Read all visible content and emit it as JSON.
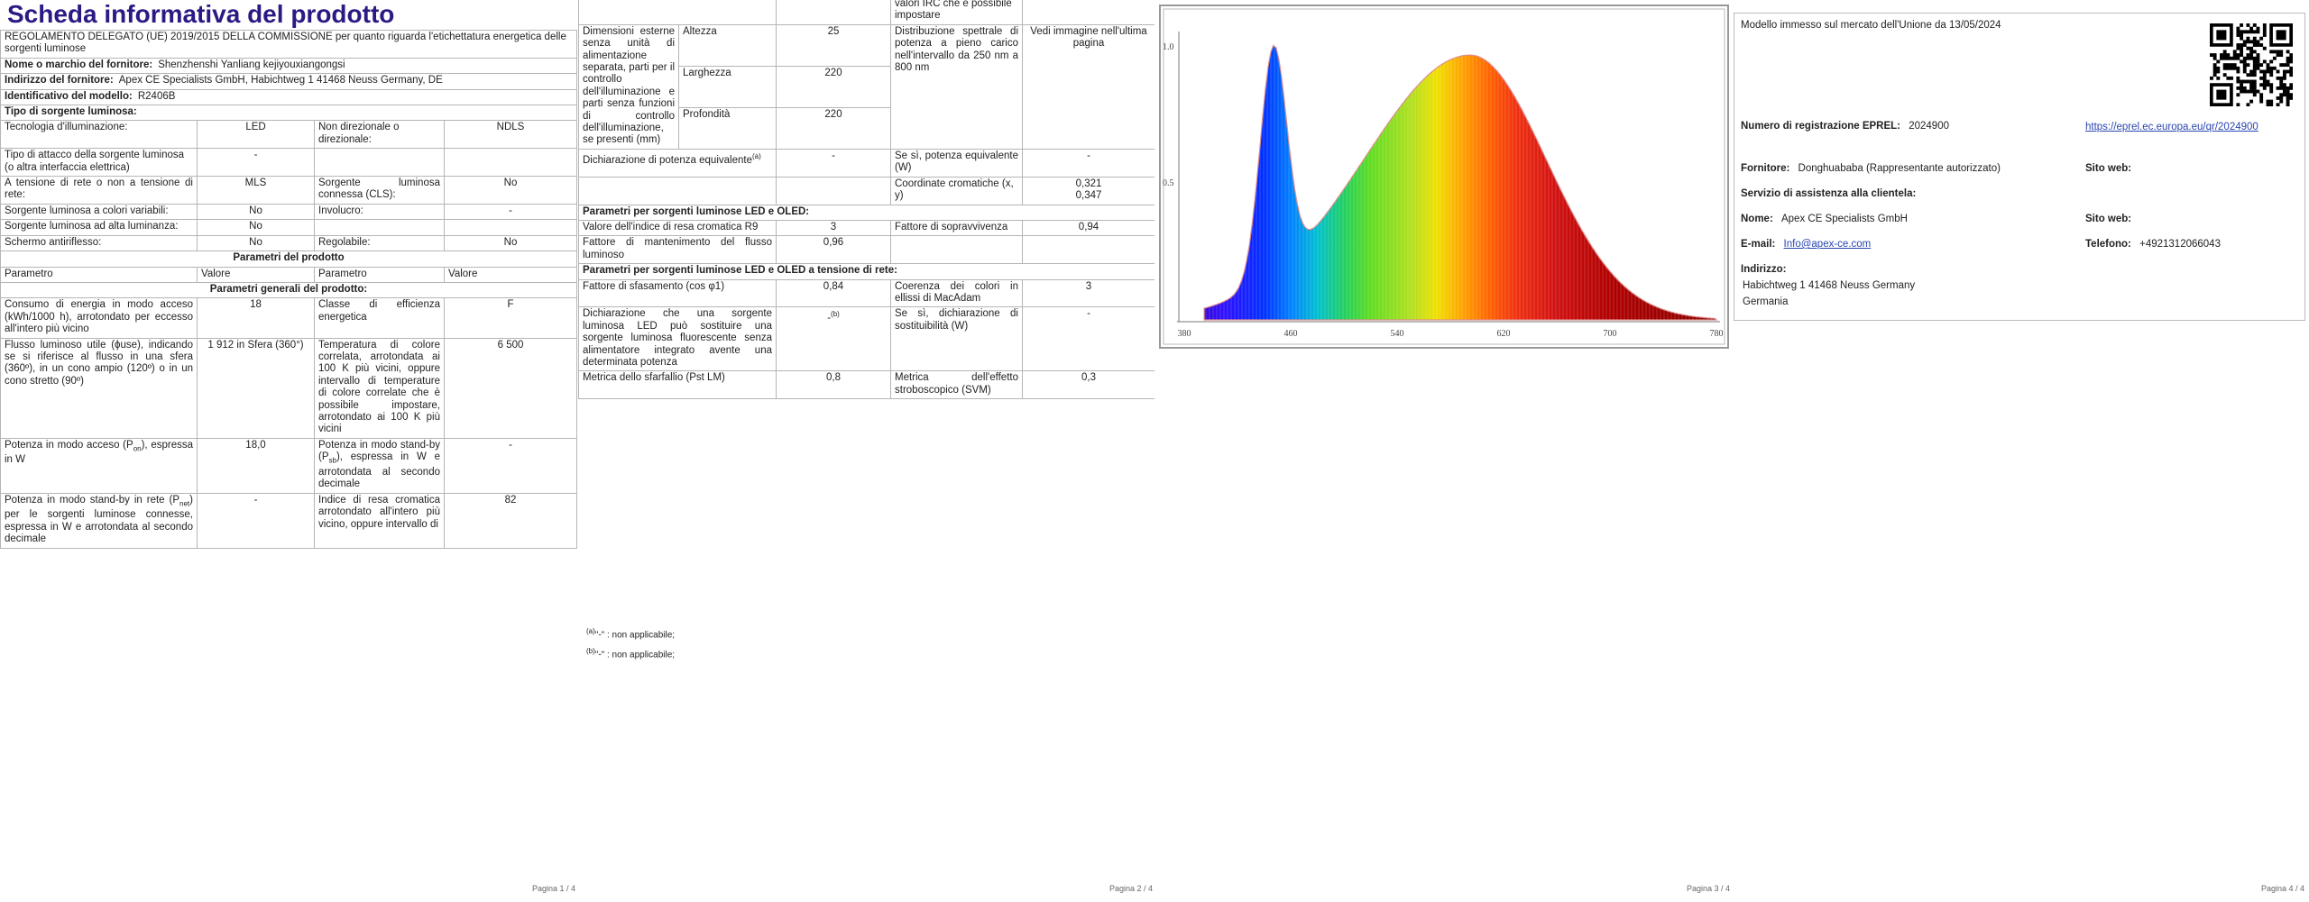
{
  "page1": {
    "title": "Scheda informativa del prodotto",
    "rows": [
      [
        "REGOLAMENTO DELEGATO (UE) 2019/2015 DELLA COMMISSIONE per quanto riguarda l'etichettatura energetica delle sorgenti luminose"
      ],
      [
        [
          "Nome o marchio del fornitore:",
          "Shenzhenshi Yanliang kejiyouxiangongsi"
        ]
      ],
      [
        [
          "Indirizzo del fornitore:",
          "Apex CE Specialists GmbH, Habichtweg 1 41468 Neuss Germany, DE"
        ]
      ],
      [
        [
          "Identificativo del modello:",
          "R2406B"
        ]
      ],
      [
        "Tipo di sorgente luminosa:"
      ],
      [
        "Tecnologia d'illuminazione:",
        "LED",
        "Non direzionale o direzionale:",
        "NDLS"
      ],
      [
        [
          "Tipo di attacco della sorgente luminosa",
          "(o altra interfaccia elettrica)"
        ],
        "-"
      ],
      [
        "A tensione di rete o non a tensione di rete:",
        "MLS",
        "Sorgente luminosa connessa (CLS):",
        "No"
      ],
      [
        "Sorgente luminosa a colori variabili:",
        "No",
        "Involucro:",
        "-"
      ],
      [
        "Sorgente luminosa ad alta luminanza:",
        "No"
      ],
      [
        "Schermo antiriflesso:",
        "No",
        "Regolabile:",
        "No"
      ],
      [
        "Parametri del prodotto"
      ],
      [
        "Parametro",
        "Valore",
        "Parametro",
        "Valore"
      ],
      [
        "Parametri generali del prodotto:"
      ],
      [
        "Consumo di energia in modo acceso (kWh/1000 h), arrotondato per eccesso all'intero più vicino",
        "18",
        "Classe di efficienza energetica",
        "F"
      ],
      [
        "Flusso luminoso utile (ϕuse), indicando se si riferisce al flusso in una sfera (360º), in un cono ampio (120º) o in un cono stretto (90º)",
        "1 912 in Sfera (360°)",
        "Temperatura di colore correlata, arrotondata ai 100 K più vicini, oppure intervallo di temperature di colore correlate che è possibile impostare, arrotondato ai 100 K più vicini",
        "6 500"
      ],
      [
        [
          "Potenza in modo acceso (P",
          "on",
          "), espressa in W"
        ],
        "18,0",
        [
          "Potenza in modo stand-by (P",
          "sb",
          "), espressa in W e arrotondata al secondo decimale"
        ],
        "-"
      ],
      [
        [
          "Potenza in modo stand-by in rete (P",
          "net",
          ") per le sorgenti luminose connesse, espressa in W e arrotondata al secondo decimale"
        ],
        "-",
        "Indice di resa cromatica arrotondato all'intero più vicino, oppure intervallo di",
        "82"
      ]
    ]
  },
  "page2": {
    "rows": [
      [
        "valori IRC che è possibile impostare"
      ],
      [
        "Dimensioni esterne senza unità di alimentazione separata, parti per il controllo dell'illuminazione e parti senza funzioni di controllo dell'illuminazione, se presenti (mm)",
        "Altezza",
        "25",
        "Distribuzione spettrale di potenza a pieno carico nell'intervallo da 250 nm a 800 nm",
        "Vedi immagine nell'ultima pagina"
      ],
      [
        "Larghezza",
        "220"
      ],
      [
        "Profondità",
        "220"
      ],
      [
        [
          "Dichiarazione di potenza equivalente",
          "(a)"
        ],
        "-",
        "Se sì, potenza equivalente (W)",
        "-"
      ],
      [
        "Coordinate cromatiche (x, y)",
        [
          "0,321",
          "0,347"
        ]
      ],
      [
        "Parametri per sorgenti luminose LED e OLED:"
      ],
      [
        "Valore dell'indice di resa cromatica R9",
        "3",
        "Fattore di sopravvivenza",
        "0,94"
      ],
      [
        "Fattore di mantenimento del flusso luminoso",
        "0,96"
      ],
      [
        "Parametri per sorgenti luminose LED e OLED a tensione di rete:"
      ],
      [
        "Fattore di sfasamento (cos φ1)",
        "0,84",
        "Coerenza dei colori in ellissi di MacAdam",
        "3"
      ],
      [
        "Dichiarazione che una sorgente luminosa LED può sostituire una sorgente luminosa fluorescente senza alimentatore integrato avente una determinata potenza",
        [
          "-",
          "(b)"
        ],
        "Se sì, dichiarazione di sostituibilità (W)",
        "-"
      ],
      [
        "Metrica dello sfarfallio (Pst LM)",
        "0,8",
        "Metrica dell'effetto stroboscopico (SVM)",
        "0,3"
      ]
    ],
    "footnotes": [
      [
        "(a)",
        "\"-\" : non applicabile;"
      ],
      [
        "(b)",
        "\"-\" : non applicabile;"
      ]
    ]
  },
  "page3": {
    "x_labels": [
      "380",
      "460",
      "540",
      "620",
      "700",
      "780"
    ],
    "y_labels": [
      "1.0",
      "0.5"
    ]
  },
  "page4": {
    "market": "Modello immesso sul mercato dell'Unione da 13/05/2024",
    "eprel_label": "Numero di registrazione EPREL:",
    "eprel": "2024900",
    "eprel_url": "https://eprel.ec.europa.eu/qr/2024900",
    "supplier_label": "Fornitore:",
    "supplier": "Donghuababa (Rappresentante autorizzato)",
    "website_label_1": "Sito web:",
    "service": "Servizio di assistenza alla clientela:",
    "name_label": "Nome:",
    "name": "Apex CE Specialists GmbH",
    "website_label_2": "Sito web:",
    "email_label": "E-mail:",
    "email": "Info@apex-ce.com",
    "phone_label": "Telefono:",
    "phone": "+4921312066043",
    "address_label": "Indirizzo:",
    "address_1": "Habichtweg 1 41468 Neuss Germany",
    "address_2": "Germania"
  },
  "footers": [
    "Pagina 1 / 4",
    "Pagina 2 / 4",
    "Pagina 3 / 4",
    "Pagina 4 / 4"
  ]
}
